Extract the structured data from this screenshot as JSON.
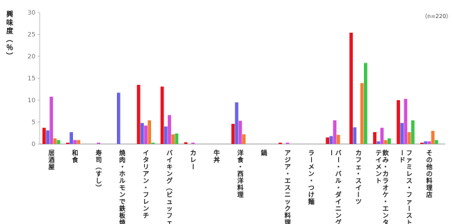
{
  "chart_data": {
    "type": "bar",
    "ylabel": "興味度（％）",
    "note": "（n=220）",
    "ylim": [
      0,
      30
    ],
    "yticks": [
      0,
      5,
      10,
      15,
      20,
      25,
      30
    ],
    "grid": false,
    "legend": "none",
    "categories": [
      "居酒屋",
      "和食",
      "寿司（すし）",
      "焼肉・ホルモンで鉄板焼き",
      "イタリアン・フレンチ",
      "バイキング（ビュッフェ）",
      "カレー",
      "牛丼",
      "洋食・西洋料理",
      "鍋",
      "アジア・エスニック料理",
      "ラーメン・つけ麺",
      "バー・バル・ダイニングバー",
      "カフェ・スイーツ",
      "飲み・カラオケ・エンターテイメント",
      "ファミレス・ファーストフード",
      "その他の料理店"
    ],
    "series": [
      {
        "color": "#e8131f",
        "values": [
          3.7,
          0.3,
          0.0,
          0.0,
          13.5,
          13.1,
          0.4,
          0.0,
          4.6,
          0.0,
          0.3,
          0.0,
          1.5,
          25.4,
          2.7,
          10.0,
          0.3
        ]
      },
      {
        "color": "#6a63e8",
        "values": [
          3.1,
          2.7,
          0.0,
          11.7,
          4.8,
          4.0,
          0.0,
          0.0,
          9.5,
          0.0,
          0.0,
          0.0,
          1.8,
          3.8,
          0.6,
          4.8,
          0.6
        ]
      },
      {
        "color": "#d34fd8",
        "values": [
          10.8,
          0.9,
          0.3,
          0.0,
          4.2,
          6.6,
          0.3,
          0.0,
          5.3,
          0.0,
          0.3,
          0.0,
          5.4,
          0.0,
          3.7,
          10.3,
          0.6
        ]
      },
      {
        "color": "#f37e32",
        "values": [
          1.3,
          0.9,
          0.0,
          0.0,
          5.4,
          2.2,
          0.0,
          0.0,
          2.2,
          0.0,
          0.0,
          0.0,
          2.1,
          13.9,
          0.9,
          2.7,
          3.0
        ]
      },
      {
        "color": "#3cc54a",
        "values": [
          0.9,
          0.0,
          0.0,
          0.0,
          0.3,
          2.4,
          0.0,
          0.0,
          0.0,
          0.0,
          0.0,
          0.0,
          0.0,
          18.5,
          1.3,
          5.4,
          0.9
        ]
      }
    ]
  }
}
